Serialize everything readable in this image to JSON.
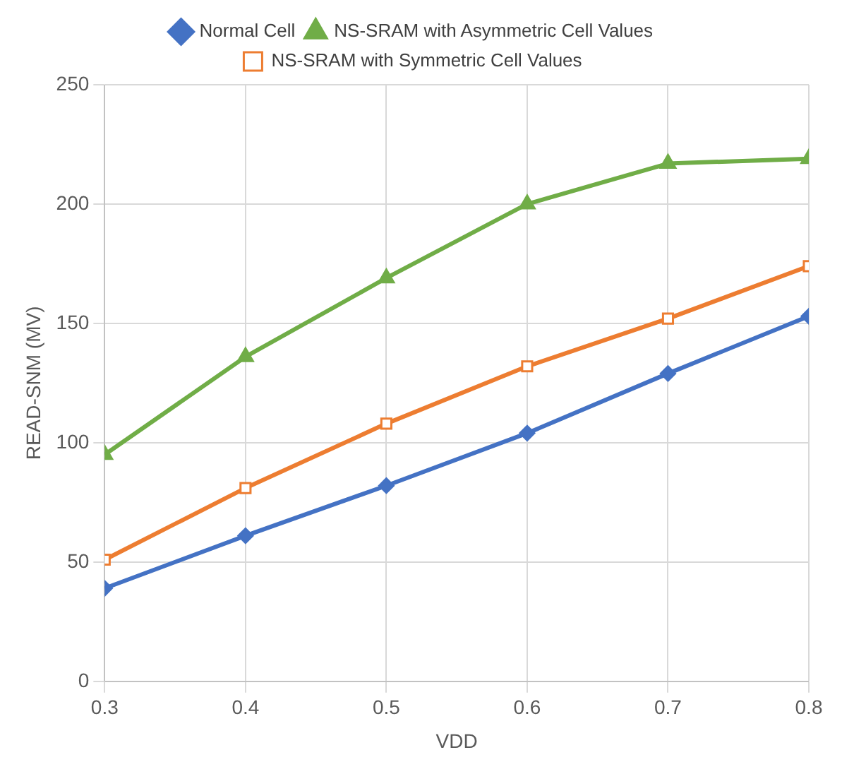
{
  "chart_data": {
    "type": "line",
    "xlabel": "VDD",
    "ylabel": "READ-SNM (MV)",
    "x": [
      0.3,
      0.4,
      0.5,
      0.6,
      0.7,
      0.8
    ],
    "xlim": [
      0.3,
      0.8
    ],
    "xticks": [
      0.3,
      0.4,
      0.5,
      0.6,
      0.7,
      0.8
    ],
    "ylim": [
      0,
      250
    ],
    "yticks": [
      0,
      50,
      100,
      150,
      200,
      250
    ],
    "grid": true,
    "legend": "top",
    "line_style": "solid",
    "series": [
      {
        "name": "Normal Cell",
        "color": "#4472c4",
        "marker": "diamond",
        "values": [
          39,
          61,
          82,
          104,
          129,
          153
        ]
      },
      {
        "name": "NS-SRAM with Asymmetric Cell Values",
        "color": "#70ad47",
        "marker": "triangle",
        "values": [
          95,
          136,
          169,
          200,
          217,
          219
        ]
      },
      {
        "name": "NS-SRAM with Symmetric Cell Values",
        "color": "#ed7d31",
        "marker": "square",
        "values": [
          51,
          81,
          108,
          132,
          152,
          174
        ]
      }
    ]
  }
}
